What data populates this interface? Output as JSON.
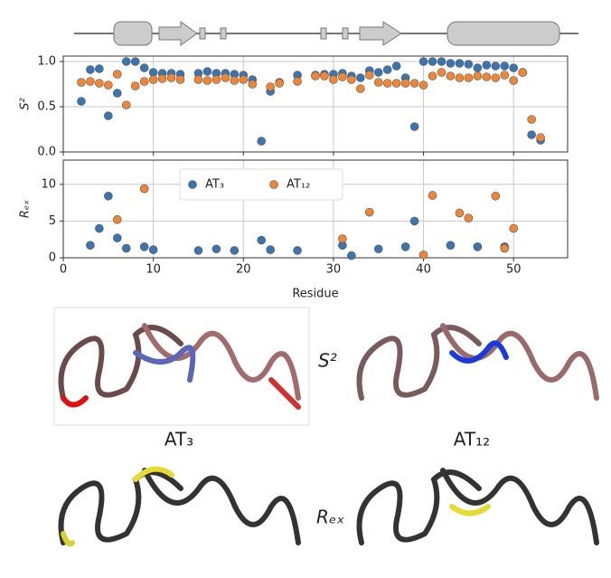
{
  "chart_data": [
    {
      "type": "scatter",
      "ylabel": "S²",
      "xlim": [
        0,
        56
      ],
      "ylim": [
        0,
        1.06
      ],
      "xticks": [
        0,
        10,
        20,
        30,
        40,
        50
      ],
      "yticks": [
        {
          "value": 0,
          "label": "0.0"
        },
        0.5,
        {
          "value": 1,
          "label": "1.0"
        }
      ],
      "grid": true,
      "series": [
        {
          "color": "#3b75af",
          "x": [
            2,
            3,
            4,
            5,
            6,
            7,
            8,
            9,
            10,
            11,
            12,
            13,
            15,
            16,
            17,
            18,
            19,
            20,
            21,
            22,
            23,
            24,
            26,
            28,
            29,
            30,
            31,
            32,
            33,
            34,
            35,
            36,
            37,
            38,
            39,
            40,
            41,
            42,
            43,
            44,
            45,
            46,
            47,
            48,
            49,
            50,
            51,
            52,
            53
          ],
          "values": [
            0.56,
            0.91,
            0.92,
            0.4,
            0.65,
            1.0,
            1.0,
            0.93,
            0.88,
            0.87,
            0.87,
            0.86,
            0.87,
            0.89,
            0.87,
            0.87,
            0.86,
            0.85,
            0.8,
            0.12,
            0.67,
            0.77,
            0.85,
            0.85,
            0.86,
            0.86,
            0.87,
            0.84,
            0.82,
            0.9,
            0.88,
            0.91,
            0.95,
            0.82,
            0.28,
            1.0,
            1.0,
            1.0,
            0.98,
            0.98,
            0.97,
            0.93,
            0.96,
            0.95,
            0.95,
            0.93,
            0.88,
            0.19,
            0.13
          ]
        },
        {
          "color": "#ef8636",
          "x": [
            2,
            3,
            4,
            5,
            6,
            7,
            8,
            9,
            10,
            11,
            12,
            13,
            15,
            16,
            17,
            18,
            19,
            20,
            21,
            23,
            24,
            26,
            28,
            29,
            30,
            31,
            32,
            33,
            34,
            35,
            36,
            37,
            38,
            39,
            40,
            41,
            42,
            43,
            44,
            45,
            46,
            47,
            48,
            49,
            50,
            51,
            52,
            53
          ],
          "values": [
            0.77,
            0.78,
            0.76,
            0.74,
            0.86,
            0.52,
            0.73,
            0.78,
            0.8,
            0.81,
            0.82,
            0.8,
            0.8,
            0.79,
            0.8,
            0.82,
            0.79,
            0.8,
            0.75,
            0.72,
            0.76,
            0.78,
            0.84,
            0.84,
            0.8,
            0.83,
            0.8,
            0.7,
            0.85,
            0.77,
            0.76,
            0.76,
            0.76,
            0.76,
            0.74,
            0.84,
            0.88,
            0.84,
            0.82,
            0.82,
            0.84,
            0.83,
            0.82,
            0.85,
            0.79,
            0.88,
            0.36,
            0.16
          ]
        }
      ]
    },
    {
      "type": "scatter",
      "ylabel": "Rₑₓ",
      "xlabel": "Residue",
      "xlim": [
        0,
        56
      ],
      "ylim": [
        0,
        13.3
      ],
      "xticks": [
        0,
        10,
        20,
        30,
        40,
        50
      ],
      "yticks": [
        0,
        5,
        10
      ],
      "grid": true,
      "legend": "upper center",
      "series": [
        {
          "name": "AT₃",
          "color": "#3b75af",
          "x": [
            3,
            4,
            5,
            6,
            7,
            9,
            10,
            15,
            17,
            19,
            22,
            23,
            26,
            31,
            32,
            35,
            38,
            39,
            43,
            46,
            49
          ],
          "values": [
            1.7,
            4.0,
            8.4,
            2.7,
            1.3,
            1.5,
            1.1,
            1.0,
            1.2,
            1.0,
            2.4,
            1.1,
            1.0,
            1.7,
            0.3,
            1.2,
            1.5,
            5.0,
            1.7,
            1.5,
            1.5
          ]
        },
        {
          "name": "AT₁₂",
          "color": "#ef8636",
          "x": [
            6,
            9,
            31,
            34,
            40,
            41,
            44,
            45,
            48,
            49,
            50
          ],
          "values": [
            5.2,
            9.4,
            2.6,
            6.2,
            0.4,
            8.5,
            6.1,
            5.4,
            8.4,
            1.3,
            4.0
          ]
        }
      ]
    }
  ],
  "structures": {
    "s2_label": "S²",
    "rex_label": "Rₑₓ",
    "labels": [
      "AT₃",
      "AT₁₂"
    ]
  }
}
